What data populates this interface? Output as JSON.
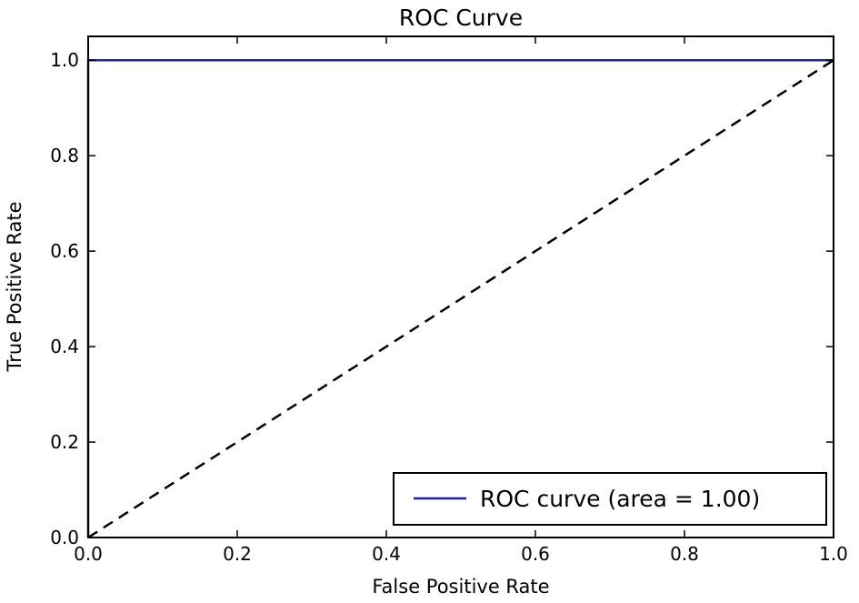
{
  "chart_data": {
    "type": "line",
    "title": "ROC Curve",
    "xlabel": "False Positive Rate",
    "ylabel": "True Positive Rate",
    "xlim": [
      0.0,
      1.0
    ],
    "ylim": [
      0.0,
      1.05
    ],
    "xticks": [
      "0.0",
      "0.2",
      "0.4",
      "0.6",
      "0.8",
      "1.0"
    ],
    "yticks": [
      "0.0",
      "0.2",
      "0.4",
      "0.6",
      "0.8",
      "1.0"
    ],
    "grid": false,
    "legend_position": "lower-right",
    "series": [
      {
        "name": "ROC curve (area = 1.00)",
        "color": "#1f1fa8",
        "style": "solid",
        "x": [
          0.0,
          0.0,
          1.0
        ],
        "y": [
          0.0,
          1.0,
          1.0
        ]
      },
      {
        "color": "#000000",
        "style": "dashed",
        "x": [
          0.0,
          1.0
        ],
        "y": [
          0.0,
          1.0
        ]
      }
    ]
  }
}
